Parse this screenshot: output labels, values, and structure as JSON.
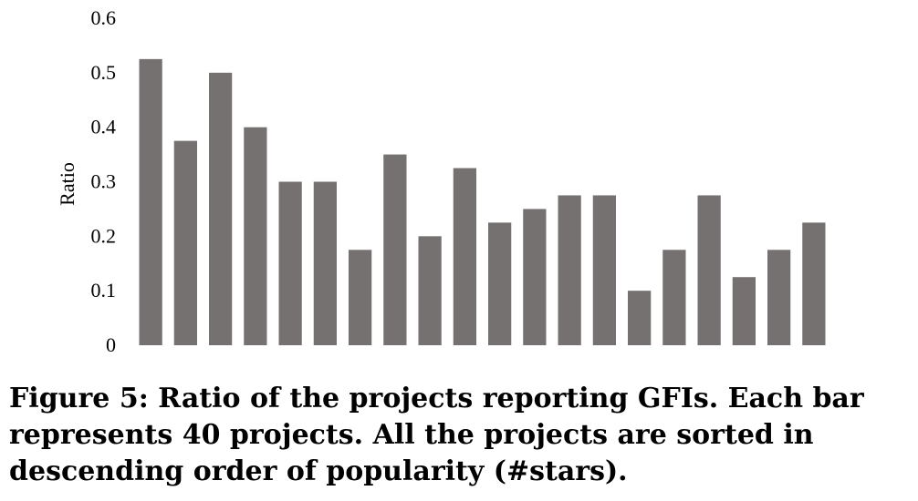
{
  "chart_data": {
    "type": "bar",
    "ylabel": "Ratio",
    "xlabel": "",
    "ylim": [
      0,
      0.6
    ],
    "yticks": [
      "0",
      "0.1",
      "0.2",
      "0.3",
      "0.4",
      "0.5",
      "0.6"
    ],
    "grid": false,
    "bar_color": "#767171",
    "values": [
      0.525,
      0.375,
      0.5,
      0.4,
      0.3,
      0.3,
      0.175,
      0.35,
      0.2,
      0.325,
      0.225,
      0.25,
      0.275,
      0.275,
      0.1,
      0.175,
      0.275,
      0.125,
      0.175,
      0.225
    ]
  },
  "caption": "Figure 5: Ratio of the projects reporting GFIs. Each bar represents 40 projects. All the projects are sorted in descending order of popularity (#stars)."
}
